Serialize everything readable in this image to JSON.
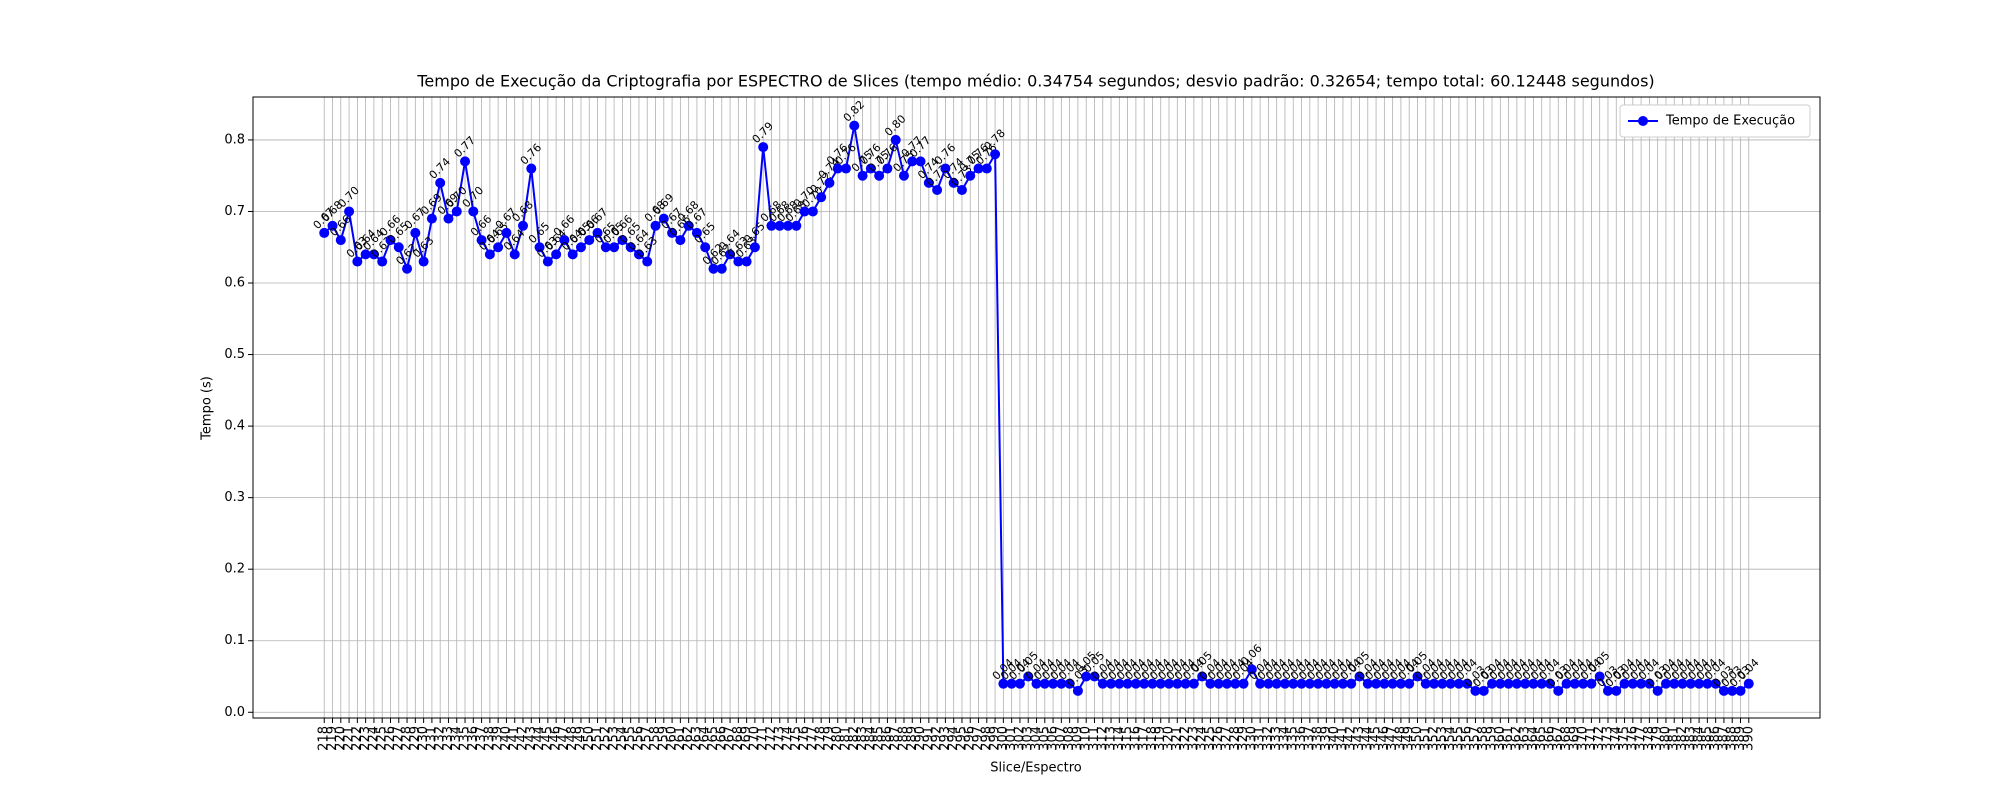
{
  "chart_data": {
    "type": "line",
    "title": "Tempo de Execução da Criptografia por ESPECTRO de Slices (tempo médio: 0.34754 segundos; desvio padrão: 0.32654; tempo total: 60.12448 segundos)",
    "xlabel": "Slice/Espectro",
    "ylabel": "Tempo (s)",
    "x": [
      218,
      219,
      220,
      221,
      222,
      223,
      224,
      225,
      226,
      227,
      228,
      229,
      230,
      231,
      232,
      233,
      234,
      235,
      236,
      237,
      238,
      239,
      240,
      241,
      242,
      243,
      244,
      245,
      246,
      247,
      248,
      249,
      250,
      251,
      252,
      253,
      254,
      255,
      256,
      257,
      258,
      259,
      260,
      261,
      262,
      263,
      264,
      265,
      266,
      267,
      268,
      269,
      270,
      271,
      272,
      273,
      274,
      275,
      276,
      277,
      278,
      279,
      280,
      281,
      282,
      283,
      284,
      285,
      286,
      287,
      288,
      289,
      290,
      291,
      292,
      293,
      294,
      295,
      296,
      297,
      298,
      299,
      300,
      301,
      302,
      303,
      304,
      305,
      306,
      307,
      308,
      309,
      310,
      311,
      312,
      313,
      314,
      315,
      316,
      317,
      318,
      319,
      320,
      321,
      322,
      323,
      324,
      325,
      326,
      327,
      328,
      329,
      330,
      331,
      332,
      333,
      334,
      335,
      336,
      337,
      338,
      339,
      340,
      341,
      342,
      343,
      344,
      345,
      346,
      347,
      348,
      349,
      350,
      351,
      352,
      353,
      354,
      355,
      356,
      357,
      358,
      359,
      360,
      361,
      362,
      363,
      364,
      365,
      366,
      367,
      368,
      369,
      370,
      371,
      372,
      373,
      374,
      375,
      376,
      377,
      378,
      379,
      380,
      381,
      382,
      383,
      384,
      385,
      386,
      387,
      388,
      389,
      390
    ],
    "series": [
      {
        "name": "Tempo de Execução",
        "color": "#0000ff",
        "values": [
          0.67,
          0.68,
          0.66,
          0.7,
          0.63,
          0.64,
          0.64,
          0.63,
          0.66,
          0.65,
          0.62,
          0.67,
          0.63,
          0.69,
          0.74,
          0.69,
          0.7,
          0.77,
          0.7,
          0.66,
          0.64,
          0.65,
          0.67,
          0.64,
          0.68,
          0.76,
          0.65,
          0.63,
          0.64,
          0.66,
          0.64,
          0.65,
          0.66,
          0.67,
          0.65,
          0.65,
          0.66,
          0.65,
          0.64,
          0.63,
          0.68,
          0.69,
          0.67,
          0.66,
          0.68,
          0.67,
          0.65,
          0.62,
          0.62,
          0.64,
          0.63,
          0.63,
          0.65,
          0.79,
          0.68,
          0.68,
          0.68,
          0.68,
          0.7,
          0.7,
          0.72,
          0.74,
          0.76,
          0.76,
          0.82,
          0.75,
          0.76,
          0.75,
          0.76,
          0.8,
          0.75,
          0.77,
          0.77,
          0.74,
          0.73,
          0.76,
          0.74,
          0.73,
          0.75,
          0.76,
          0.76,
          0.78,
          0.04,
          0.04,
          0.04,
          0.05,
          0.04,
          0.04,
          0.04,
          0.04,
          0.04,
          0.03,
          0.05,
          0.05,
          0.04,
          0.04,
          0.04,
          0.04,
          0.04,
          0.04,
          0.04,
          0.04,
          0.04,
          0.04,
          0.04,
          0.04,
          0.05,
          0.04,
          0.04,
          0.04,
          0.04,
          0.04,
          0.06,
          0.04,
          0.04,
          0.04,
          0.04,
          0.04,
          0.04,
          0.04,
          0.04,
          0.04,
          0.04,
          0.04,
          0.04,
          0.05,
          0.04,
          0.04,
          0.04,
          0.04,
          0.04,
          0.04,
          0.05,
          0.04,
          0.04,
          0.04,
          0.04,
          0.04,
          0.04,
          0.03,
          0.03,
          0.04,
          0.04,
          0.04,
          0.04,
          0.04,
          0.04,
          0.04,
          0.04,
          0.03,
          0.04,
          0.04,
          0.04,
          0.04,
          0.05,
          0.03,
          0.03,
          0.04,
          0.04,
          0.04,
          0.04,
          0.03,
          0.04,
          0.04,
          0.04,
          0.04,
          0.04,
          0.04,
          0.04,
          0.03,
          0.03,
          0.03,
          0.04
        ],
        "value_labels": [
          "0.67",
          "0.68",
          "0.66",
          "0.70",
          "0.63",
          "0.64",
          "0.64",
          "0.63",
          "0.66",
          "0.65",
          "0.62",
          "0.67",
          "0.63",
          "0.69",
          "0.74",
          "0.69",
          "0.70",
          "0.77",
          "0.70",
          "0.66",
          "0.64",
          "0.65",
          "0.67",
          "0.64",
          "0.68",
          "0.76",
          "0.65",
          "0.63",
          "0.64",
          "0.66",
          "0.64",
          "0.65",
          "0.66",
          "0.67",
          "0.65",
          "0.65",
          "0.66",
          "0.65",
          "0.64",
          "0.63",
          "0.68",
          "0.69",
          "0.67",
          "0.66",
          "0.68",
          "0.67",
          "0.65",
          "0.62",
          "0.62",
          "0.64",
          "0.63",
          "0.63",
          "0.65",
          "0.79",
          "0.68",
          "0.68",
          "0.68",
          "0.68",
          "0.70",
          "0.70",
          "0.72",
          "0.74",
          "0.76",
          "0.76",
          "0.82",
          "0.75",
          "0.76",
          "0.75",
          "0.76",
          "0.80",
          "0.75",
          "0.77",
          "0.77",
          "0.74",
          "0.73",
          "0.76",
          "0.74",
          "0.73",
          "0.75",
          "0.76",
          "0.76",
          "0.78",
          "0.04",
          "0.04",
          "0.04",
          "0.05",
          "0.04",
          "0.04",
          "0.04",
          "0.04",
          "0.04",
          "0.03",
          "0.05",
          "0.05",
          "0.04",
          "0.04",
          "0.04",
          "0.04",
          "0.04",
          "0.04",
          "0.04",
          "0.04",
          "0.04",
          "0.04",
          "0.04",
          "0.04",
          "0.05",
          "0.04",
          "0.04",
          "0.04",
          "0.04",
          "0.04",
          "0.06",
          "0.04",
          "0.04",
          "0.04",
          "0.04",
          "0.04",
          "0.04",
          "0.04",
          "0.04",
          "0.04",
          "0.04",
          "0.04",
          "0.04",
          "0.05",
          "0.04",
          "0.04",
          "0.04",
          "0.04",
          "0.04",
          "0.04",
          "0.05",
          "0.04",
          "0.04",
          "0.04",
          "0.04",
          "0.04",
          "0.04",
          "0.03",
          "0.03",
          "0.04",
          "0.04",
          "0.04",
          "0.04",
          "0.04",
          "0.04",
          "0.04",
          "0.04",
          "0.03",
          "0.04",
          "0.04",
          "0.04",
          "0.04",
          "0.05",
          "0.03",
          "0.03",
          "0.04",
          "0.04",
          "0.04",
          "0.04",
          "0.03",
          "0.04",
          "0.04",
          "0.04",
          "0.04",
          "0.04",
          "0.04",
          "0.04",
          "0.03",
          "0.03",
          "0.03",
          "0.04"
        ]
      }
    ],
    "xlim": [
      209.4,
      398.6
    ],
    "ylim": [
      -0.008,
      0.86
    ],
    "yticks": [
      {
        "value": 0,
        "label": "0.0"
      },
      0.1,
      0.2,
      0.3,
      0.4,
      0.5,
      0.6,
      0.7,
      0.8
    ],
    "grid": true,
    "legend": "upper right"
  }
}
